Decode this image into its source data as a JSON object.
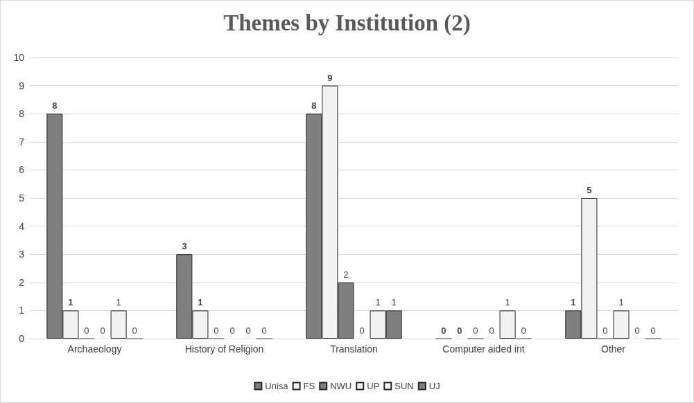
{
  "chart_data": {
    "type": "bar",
    "title": "Themes by Institution (2)",
    "categories": [
      "Archaeology",
      "History of Religion",
      "Translation",
      "Computer aided int",
      "Other"
    ],
    "series": [
      {
        "name": "Unisa",
        "color": "#7f7f7f",
        "values": [
          8,
          3,
          8,
          0,
          1
        ]
      },
      {
        "name": "FS",
        "color": "#f2f2f2",
        "values": [
          1,
          1,
          9,
          0,
          5
        ]
      },
      {
        "name": "NWU",
        "color": "#7f7f7f",
        "values": [
          0,
          0,
          2,
          0,
          0
        ]
      },
      {
        "name": "UP",
        "color": "#f2f2f2",
        "values": [
          0,
          0,
          0,
          0,
          1
        ]
      },
      {
        "name": "SUN",
        "color": "#f2f2f2",
        "values": [
          1,
          0,
          1,
          1,
          0
        ]
      },
      {
        "name": "UJ",
        "color": "#7f7f7f",
        "values": [
          0,
          0,
          1,
          0,
          0
        ]
      }
    ],
    "ylim": [
      0,
      10
    ],
    "yticks": [
      0,
      1,
      2,
      3,
      4,
      5,
      6,
      7,
      8,
      9,
      10
    ],
    "grid": "y",
    "legend": "bottom",
    "data_labels": true
  }
}
